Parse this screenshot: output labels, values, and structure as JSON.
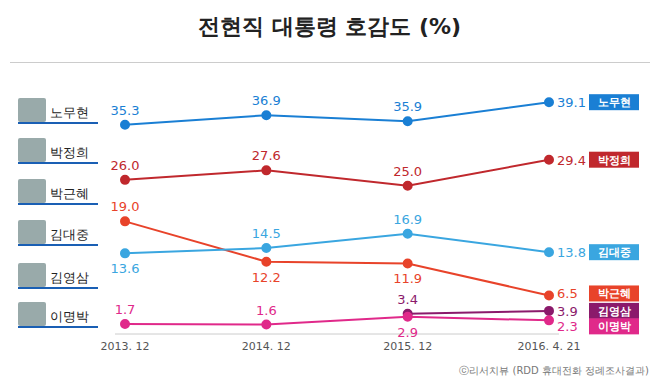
{
  "chart_data": {
    "type": "line",
    "title": "전현직 대통령 호감도 (%)",
    "annotation": "ⓒ리서치뷰 (RDD 휴대전화 정례조사결과)",
    "categories": [
      "2013. 12",
      "2014. 12",
      "2015. 12",
      "2016. 4. 21"
    ],
    "series": [
      {
        "name": "노무현",
        "color": "#1a7fd4",
        "values": [
          35.3,
          36.9,
          35.9,
          39.1
        ]
      },
      {
        "name": "박정희",
        "color": "#c0282d",
        "values": [
          26.0,
          27.6,
          25.0,
          29.4
        ],
        "value_labels": [
          "26.0",
          "27.6",
          "25.0",
          "29.4"
        ]
      },
      {
        "name": "박근혜",
        "color": "#e8432a",
        "values": [
          19.0,
          12.2,
          11.9,
          6.5
        ],
        "value_labels": [
          "19.0",
          "12.2",
          "11.9",
          "6.5"
        ]
      },
      {
        "name": "김대중",
        "color": "#3aa6e0",
        "values": [
          13.6,
          14.5,
          16.9,
          13.8
        ]
      },
      {
        "name": "김영삼",
        "color": "#8b1a6b",
        "values": [
          null,
          null,
          3.4,
          3.9
        ]
      },
      {
        "name": "이명박",
        "color": "#e0298a",
        "values": [
          1.7,
          1.6,
          2.9,
          2.3
        ]
      }
    ],
    "ylim": [
      0,
      42
    ],
    "data_labels": true,
    "marker": "circle",
    "tick_labels": "x",
    "grid": false
  }
}
